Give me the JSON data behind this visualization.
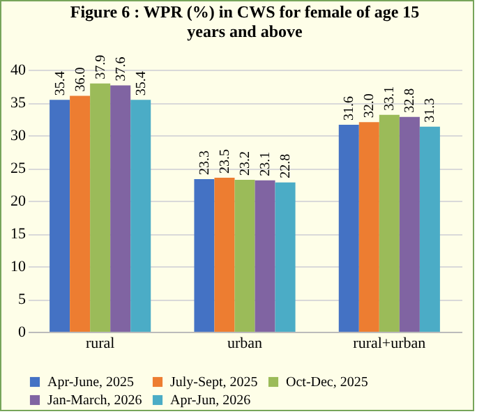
{
  "chart_data": {
    "type": "bar",
    "title": "Figure 6 : WPR  (%) in CWS for female of age 15 years and above",
    "categories": [
      "rural",
      "urban",
      "rural+urban"
    ],
    "series": [
      {
        "name": "Apr-June, 2025",
        "color": "#4472c4",
        "values": [
          35.4,
          23.3,
          31.6
        ],
        "value_labels": [
          "35.4",
          "23.3",
          "31.6"
        ]
      },
      {
        "name": "July-Sept, 2025",
        "color": "#ed7d31",
        "values": [
          36.0,
          23.5,
          32.0
        ],
        "value_labels": [
          "36.0",
          "23.5",
          "32.0"
        ]
      },
      {
        "name": "Oct-Dec, 2025",
        "color": "#9bbb59",
        "values": [
          37.9,
          23.2,
          33.1
        ],
        "value_labels": [
          "37.9",
          "23.2",
          "33.1"
        ]
      },
      {
        "name": "Jan-March, 2026",
        "color": "#8064a2",
        "values": [
          37.6,
          23.1,
          32.8
        ],
        "value_labels": [
          "37.6",
          "23.1",
          "32.8"
        ]
      },
      {
        "name": "Apr-Jun, 2026",
        "color": "#4bacc6",
        "values": [
          35.4,
          22.8,
          31.3
        ],
        "value_labels": [
          "35.4",
          "22.8",
          "31.3"
        ]
      }
    ],
    "ylim": [
      0,
      40
    ],
    "yticks": [
      0,
      5,
      10,
      15,
      20,
      25,
      30,
      35,
      40
    ],
    "grid": "y",
    "legend": "bottom"
  }
}
